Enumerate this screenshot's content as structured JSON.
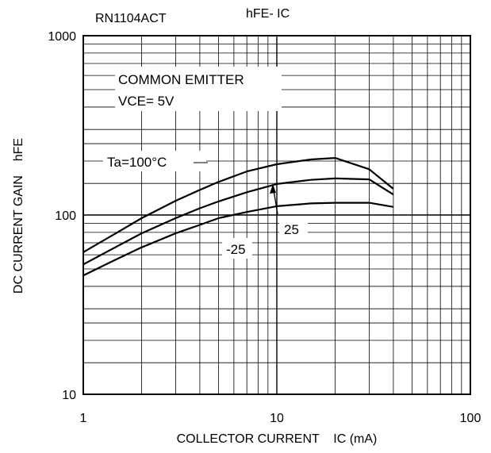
{
  "chart_data": {
    "type": "line",
    "part_number": "RN1104ACT",
    "title": "hFE- IC",
    "xlabel": "COLLECTOR CURRENT    IC (mA)",
    "ylabel": "DC CURRENT GAIN    hFE",
    "x_scale": "log",
    "y_scale": "log",
    "xlim": [
      1,
      100
    ],
    "ylim": [
      10,
      1000
    ],
    "x_ticks": [
      {
        "value": 1,
        "label": "1"
      },
      {
        "value": 10,
        "label": "10"
      },
      {
        "value": 100,
        "label": "100"
      }
    ],
    "y_ticks": [
      {
        "value": 10,
        "label": "10"
      },
      {
        "value": 100,
        "label": "100"
      },
      {
        "value": 1000,
        "label": "1000"
      }
    ],
    "grid": true,
    "conditions": [
      "COMMON EMITTER",
      "VCE= 5V"
    ],
    "series": [
      {
        "name": "Ta=100°C",
        "x": [
          1,
          1.5,
          2,
          3,
          4,
          5,
          7,
          10,
          15,
          20,
          30,
          40
        ],
        "y": [
          62,
          80,
          96,
          120,
          138,
          153,
          175,
          192,
          204,
          208,
          180,
          140
        ]
      },
      {
        "name": "25",
        "x": [
          1,
          1.5,
          2,
          3,
          4,
          5,
          7,
          10,
          15,
          20,
          30,
          40
        ],
        "y": [
          53,
          67,
          79,
          96,
          109,
          119,
          134,
          149,
          157,
          160,
          158,
          130
        ]
      },
      {
        "name": "-25",
        "x": [
          1,
          1.5,
          2,
          3,
          4,
          5,
          7,
          10,
          15,
          20,
          30,
          40
        ],
        "y": [
          46,
          57,
          66,
          79,
          88,
          96,
          104,
          112,
          116,
          117,
          117,
          111
        ]
      }
    ]
  }
}
